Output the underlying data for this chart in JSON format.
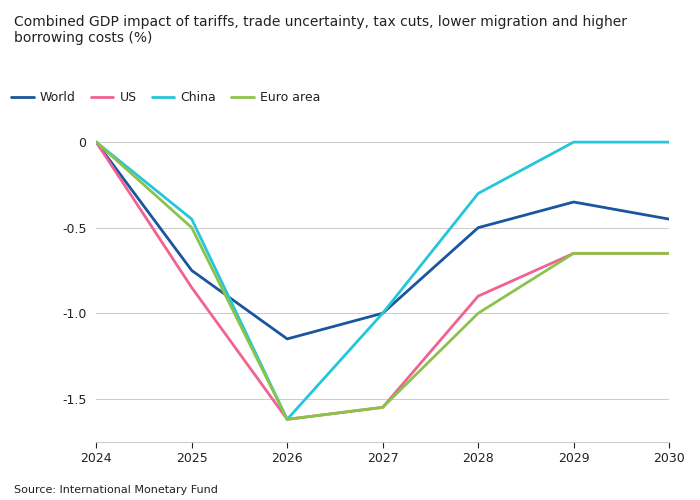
{
  "title": "Combined GDP impact of tariffs, trade uncertainty, tax cuts, lower migration and higher\nborrowing costs (%)",
  "source": "Source: International Monetary Fund",
  "years": [
    2024,
    2025,
    2026,
    2027,
    2028,
    2029,
    2030
  ],
  "series": {
    "World": {
      "values": [
        0.0,
        -0.75,
        -1.15,
        -1.0,
        -0.5,
        -0.35,
        -0.45
      ],
      "color": "#1a56a0",
      "linewidth": 2.0
    },
    "US": {
      "values": [
        0.0,
        -0.85,
        -1.62,
        -1.55,
        -0.9,
        -0.65,
        -0.65
      ],
      "color": "#f06292",
      "linewidth": 2.0
    },
    "China": {
      "values": [
        0.0,
        -0.45,
        -1.62,
        -1.0,
        -0.3,
        0.0,
        0.0
      ],
      "color": "#26c6da",
      "linewidth": 2.0
    },
    "Euro area": {
      "values": [
        0.0,
        -0.5,
        -1.62,
        -1.55,
        -1.0,
        -0.65,
        -0.65
      ],
      "color": "#8bc34a",
      "linewidth": 2.0
    }
  },
  "xlim": [
    2024,
    2030
  ],
  "ylim": [
    -1.75,
    0.1
  ],
  "yticks": [
    0,
    -0.5,
    -1.0,
    -1.5
  ],
  "ytick_labels": [
    "0",
    "-0.5",
    "-1.0",
    "-1.5"
  ],
  "background_color": "#ffffff",
  "plot_bg_color": "#ffffff",
  "grid_color": "#cccccc",
  "text_color": "#222222",
  "axis_color": "#cccccc",
  "title_fontsize": 10,
  "legend_fontsize": 9,
  "tick_fontsize": 9,
  "source_fontsize": 8
}
